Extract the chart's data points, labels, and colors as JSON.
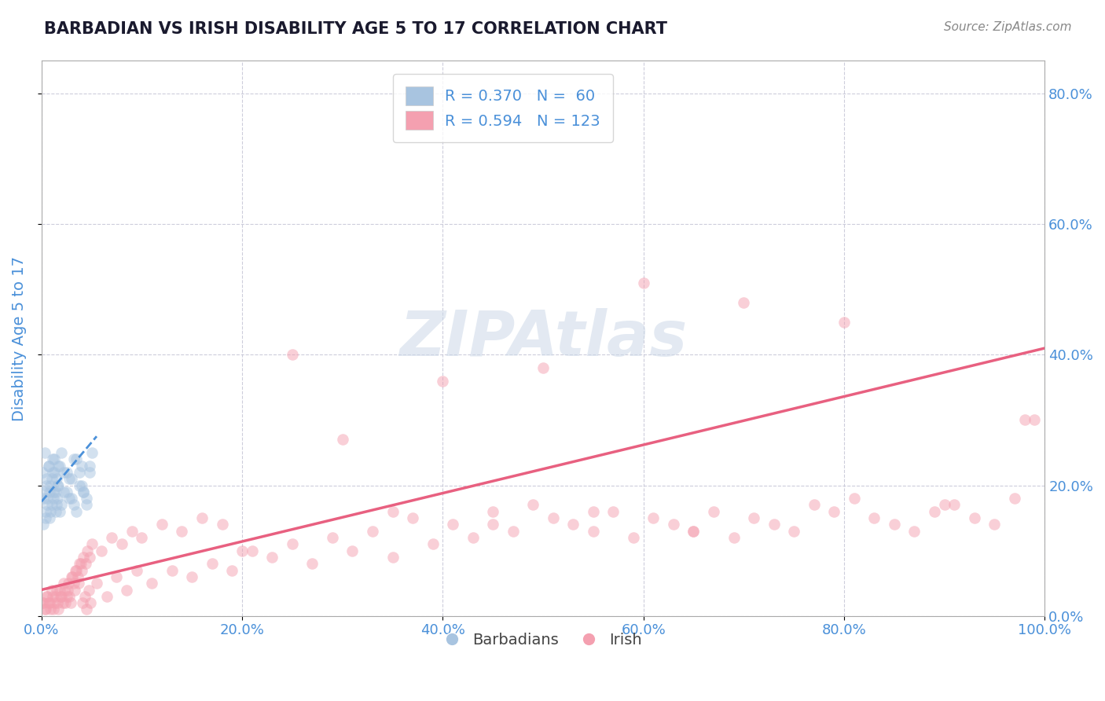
{
  "title": "BARBADIAN VS IRISH DISABILITY AGE 5 TO 17 CORRELATION CHART",
  "source_text": "Source: ZipAtlas.com",
  "ylabel": "Disability Age 5 to 17",
  "watermark": "ZIPAtlas",
  "barbadian_color": "#a8c4e0",
  "irish_color": "#f4a0b0",
  "trend_barbadian_color": "#4a90d9",
  "trend_irish_color": "#e86080",
  "title_color": "#1a1a2e",
  "axis_label_color": "#4a90d9",
  "tick_label_color": "#4a90d9",
  "background_color": "#ffffff",
  "grid_color": "#c8c8d8",
  "legend_r_color": "#4a90d9",
  "xlim": [
    0.0,
    1.0
  ],
  "ylim": [
    0.0,
    0.85
  ],
  "yticks": [
    0.0,
    0.2,
    0.4,
    0.6,
    0.8
  ],
  "xticks": [
    0.0,
    0.2,
    0.4,
    0.6,
    0.8,
    1.0
  ],
  "barbadian_x": [
    0.001,
    0.002,
    0.003,
    0.004,
    0.005,
    0.006,
    0.007,
    0.008,
    0.009,
    0.01,
    0.011,
    0.012,
    0.013,
    0.014,
    0.015,
    0.016,
    0.017,
    0.018,
    0.02,
    0.022,
    0.025,
    0.028,
    0.03,
    0.032,
    0.035,
    0.038,
    0.04,
    0.042,
    0.045,
    0.048,
    0.05,
    0.002,
    0.003,
    0.004,
    0.005,
    0.006,
    0.007,
    0.008,
    0.009,
    0.01,
    0.011,
    0.012,
    0.013,
    0.014,
    0.015,
    0.016,
    0.017,
    0.018,
    0.02,
    0.022,
    0.025,
    0.028,
    0.03,
    0.032,
    0.035,
    0.038,
    0.04,
    0.042,
    0.045,
    0.048
  ],
  "barbadian_y": [
    0.22,
    0.18,
    0.25,
    0.15,
    0.2,
    0.17,
    0.23,
    0.19,
    0.16,
    0.21,
    0.24,
    0.18,
    0.22,
    0.19,
    0.17,
    0.2,
    0.23,
    0.16,
    0.25,
    0.19,
    0.22,
    0.18,
    0.21,
    0.17,
    0.24,
    0.2,
    0.23,
    0.19,
    0.18,
    0.22,
    0.25,
    0.14,
    0.19,
    0.16,
    0.21,
    0.18,
    0.23,
    0.15,
    0.2,
    0.17,
    0.22,
    0.19,
    0.24,
    0.16,
    0.21,
    0.18,
    0.2,
    0.23,
    0.17,
    0.22,
    0.19,
    0.21,
    0.18,
    0.24,
    0.16,
    0.22,
    0.2,
    0.19,
    0.17,
    0.23
  ],
  "irish_x": [
    0.001,
    0.003,
    0.005,
    0.007,
    0.009,
    0.011,
    0.013,
    0.015,
    0.017,
    0.019,
    0.021,
    0.023,
    0.025,
    0.027,
    0.029,
    0.031,
    0.033,
    0.035,
    0.037,
    0.039,
    0.041,
    0.043,
    0.045,
    0.047,
    0.049,
    0.055,
    0.065,
    0.075,
    0.085,
    0.095,
    0.11,
    0.13,
    0.15,
    0.17,
    0.19,
    0.21,
    0.23,
    0.25,
    0.27,
    0.29,
    0.31,
    0.33,
    0.35,
    0.37,
    0.39,
    0.41,
    0.43,
    0.45,
    0.47,
    0.49,
    0.51,
    0.53,
    0.55,
    0.57,
    0.59,
    0.61,
    0.63,
    0.65,
    0.67,
    0.69,
    0.71,
    0.73,
    0.75,
    0.77,
    0.79,
    0.81,
    0.83,
    0.85,
    0.87,
    0.89,
    0.91,
    0.93,
    0.95,
    0.97,
    0.99,
    0.002,
    0.004,
    0.006,
    0.008,
    0.01,
    0.012,
    0.014,
    0.016,
    0.018,
    0.02,
    0.022,
    0.024,
    0.026,
    0.028,
    0.03,
    0.032,
    0.034,
    0.036,
    0.038,
    0.04,
    0.042,
    0.044,
    0.046,
    0.048,
    0.05,
    0.06,
    0.07,
    0.08,
    0.09,
    0.1,
    0.12,
    0.14,
    0.16,
    0.18,
    0.2,
    0.3,
    0.4,
    0.5,
    0.6,
    0.7,
    0.8,
    0.9,
    0.55,
    0.65,
    0.45,
    0.35,
    0.25,
    0.98
  ],
  "irish_y": [
    0.02,
    0.01,
    0.03,
    0.02,
    0.01,
    0.03,
    0.02,
    0.04,
    0.01,
    0.03,
    0.02,
    0.04,
    0.03,
    0.05,
    0.02,
    0.06,
    0.04,
    0.07,
    0.05,
    0.08,
    0.02,
    0.03,
    0.01,
    0.04,
    0.02,
    0.05,
    0.03,
    0.06,
    0.04,
    0.07,
    0.05,
    0.07,
    0.06,
    0.08,
    0.07,
    0.1,
    0.09,
    0.11,
    0.08,
    0.12,
    0.1,
    0.13,
    0.09,
    0.15,
    0.11,
    0.14,
    0.12,
    0.16,
    0.13,
    0.17,
    0.15,
    0.14,
    0.13,
    0.16,
    0.12,
    0.15,
    0.14,
    0.13,
    0.16,
    0.12,
    0.15,
    0.14,
    0.13,
    0.17,
    0.16,
    0.18,
    0.15,
    0.14,
    0.13,
    0.16,
    0.17,
    0.15,
    0.14,
    0.18,
    0.3,
    0.02,
    0.01,
    0.03,
    0.02,
    0.04,
    0.01,
    0.03,
    0.02,
    0.04,
    0.03,
    0.05,
    0.02,
    0.04,
    0.03,
    0.06,
    0.05,
    0.07,
    0.06,
    0.08,
    0.07,
    0.09,
    0.08,
    0.1,
    0.09,
    0.11,
    0.1,
    0.12,
    0.11,
    0.13,
    0.12,
    0.14,
    0.13,
    0.15,
    0.14,
    0.1,
    0.27,
    0.36,
    0.38,
    0.51,
    0.48,
    0.45,
    0.17,
    0.16,
    0.13,
    0.14,
    0.16,
    0.4,
    0.3
  ],
  "barbadian_trend_x": [
    0.0,
    0.055
  ],
  "barbadian_trend_y": [
    0.175,
    0.275
  ],
  "irish_trend_x": [
    0.0,
    1.0
  ],
  "irish_trend_y": [
    0.04,
    0.41
  ],
  "figsize": [
    14.06,
    8.92
  ],
  "dpi": 100,
  "scatter_size": 110,
  "scatter_alpha": 0.5
}
